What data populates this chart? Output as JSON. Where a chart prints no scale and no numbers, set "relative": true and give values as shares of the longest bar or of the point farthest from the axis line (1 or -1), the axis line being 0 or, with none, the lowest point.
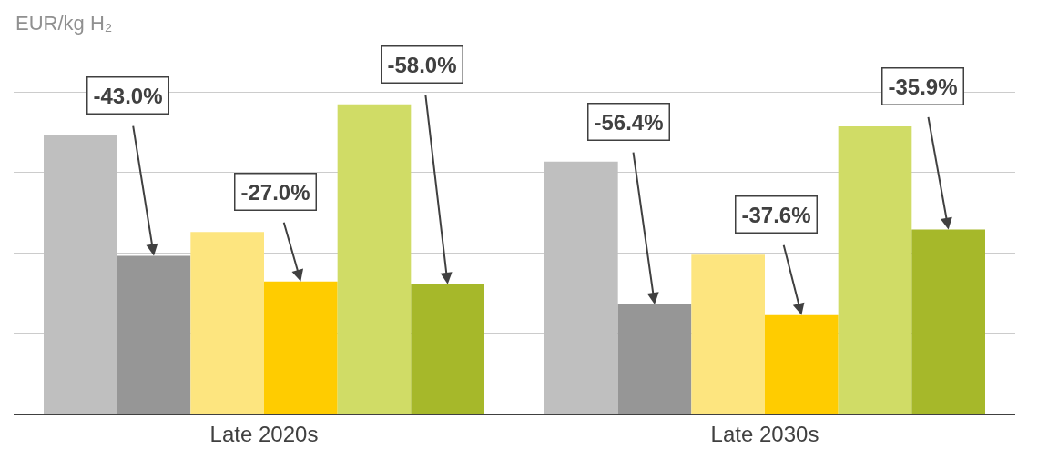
{
  "chart_data": {
    "type": "bar",
    "relative": true,
    "ylabel": "EUR/kg H₂",
    "categories": [
      "Late 2020s",
      "Late 2030s"
    ],
    "series": [
      {
        "color": "#bfbfbf",
        "values": [
          0.9,
          0.815
        ]
      },
      {
        "color": "#969696",
        "values": [
          0.51,
          0.353
        ]
      },
      {
        "color": "#fde57f",
        "values": [
          0.587,
          0.514
        ]
      },
      {
        "color": "#ffcc00",
        "values": [
          0.427,
          0.318
        ]
      },
      {
        "color": "#d0dc66",
        "values": [
          1,
          0.929
        ]
      },
      {
        "color": "#a6b82a",
        "values": [
          0.418,
          0.595
        ]
      }
    ],
    "annotations": [
      "-43.0%",
      "-27.0%",
      "-58.0%",
      "-56.4%",
      "-37.6%",
      "-35.9%"
    ],
    "grid": "y"
  }
}
